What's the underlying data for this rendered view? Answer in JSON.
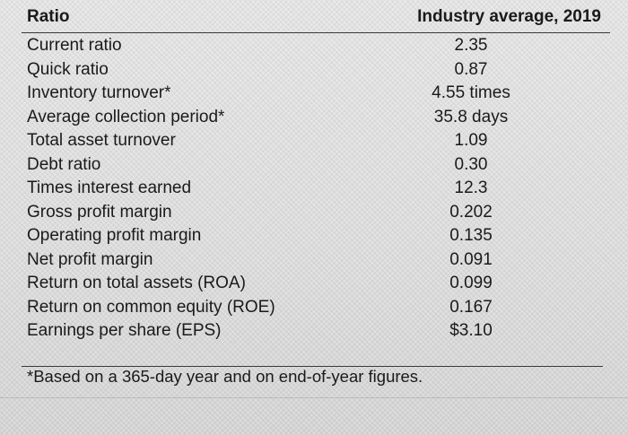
{
  "table": {
    "header": {
      "ratio": "Ratio",
      "industry": "Industry average, 2019"
    },
    "rows": [
      {
        "label": "Current ratio",
        "value": "2.35"
      },
      {
        "label": "Quick ratio",
        "value": "0.87"
      },
      {
        "label": "Inventory turnover*",
        "value": "4.55 times"
      },
      {
        "label": "Average collection period*",
        "value": "35.8 days"
      },
      {
        "label": "Total asset turnover",
        "value": "1.09"
      },
      {
        "label": "Debt ratio",
        "value": "0.30"
      },
      {
        "label": "Times interest earned",
        "value": "12.3"
      },
      {
        "label": "Gross profit margin",
        "value": "0.202"
      },
      {
        "label": "Operating profit margin",
        "value": "0.135"
      },
      {
        "label": "Net profit margin",
        "value": "0.091"
      },
      {
        "label": "Return on total assets (ROA)",
        "value": "0.099"
      },
      {
        "label": "Return on common equity (ROE)",
        "value": "0.167"
      },
      {
        "label": "Earnings per share (EPS)",
        "value": "$3.10"
      }
    ],
    "footnote": "*Based on a 365-day year and on end-of-year figures."
  }
}
